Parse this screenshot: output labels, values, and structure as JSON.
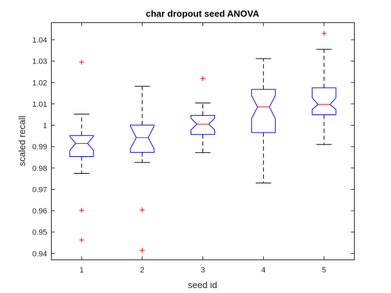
{
  "chart_data": {
    "type": "boxplot",
    "title": "char dropout seed ANOVA",
    "xlabel": "seed id",
    "ylabel": "scaled recall",
    "categories": [
      "1",
      "2",
      "3",
      "4",
      "5"
    ],
    "ylim": [
      0.937,
      1.048
    ],
    "yticks": [
      0.94,
      0.95,
      0.96,
      0.97,
      0.98,
      0.99,
      1,
      1.01,
      1.02,
      1.03,
      1.04
    ],
    "ytick_labels": [
      "0.94",
      "0.95",
      "0.96",
      "0.97",
      "0.98",
      "0.99",
      "1",
      "1.01",
      "1.02",
      "1.03",
      "1.04"
    ],
    "notched": true,
    "grid": false,
    "colors": {
      "box": "#0000ff",
      "median": "#ff0000",
      "whisker": "#000000",
      "outlier": "#ff0000"
    },
    "boxes": [
      {
        "label": "1",
        "whisker_low": 0.9775,
        "q1": 0.9853,
        "notch_low": 0.9882,
        "median": 0.9915,
        "notch_high": 0.9948,
        "q3": 0.9952,
        "whisker_high": 1.0052,
        "outliers": [
          1.0295,
          0.9602,
          0.9463
        ]
      },
      {
        "label": "2",
        "whisker_low": 0.9826,
        "q1": 0.9873,
        "notch_low": 0.989,
        "median": 0.9942,
        "notch_high": 0.9996,
        "q3": 1.0001,
        "whisker_high": 1.0182,
        "outliers": [
          0.9604,
          0.9415
        ]
      },
      {
        "label": "3",
        "whisker_low": 0.9872,
        "q1": 0.9957,
        "notch_low": 0.9978,
        "median": 1.0005,
        "notch_high": 1.0033,
        "q3": 1.0046,
        "whisker_high": 1.0104,
        "outliers": [
          1.0218
        ]
      },
      {
        "label": "4",
        "whisker_low": 0.973,
        "q1": 0.9966,
        "notch_low": 1.003,
        "median": 1.0086,
        "notch_high": 1.0138,
        "q3": 1.0168,
        "whisker_high": 1.0312,
        "outliers": []
      },
      {
        "label": "5",
        "whisker_low": 0.991,
        "q1": 1.0049,
        "notch_low": 1.0074,
        "median": 1.0097,
        "notch_high": 1.0128,
        "q3": 1.0175,
        "whisker_high": 1.0355,
        "outliers": [
          1.043
        ]
      }
    ]
  }
}
